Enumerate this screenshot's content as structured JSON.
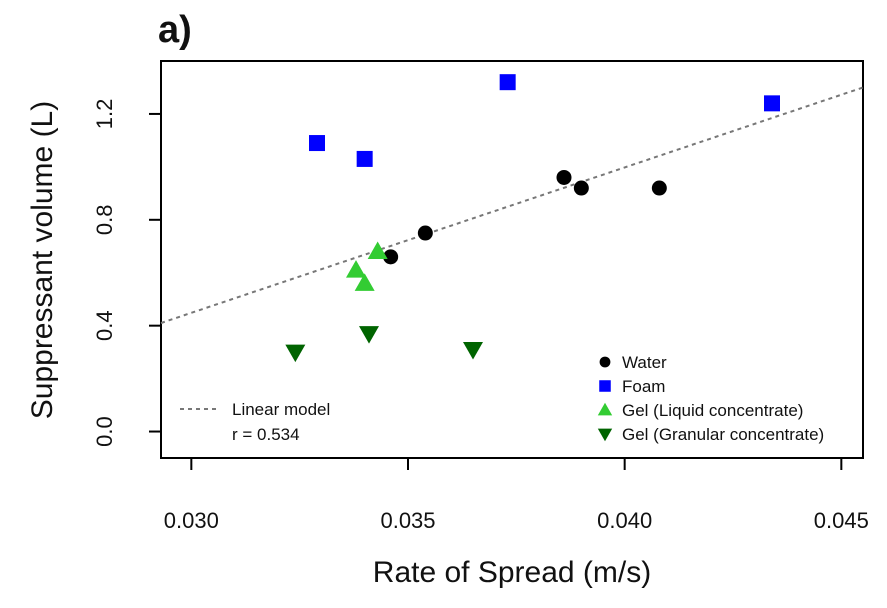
{
  "panel_label": "a)",
  "chart_data": {
    "type": "scatter",
    "xlabel": "Rate of Spread (m/s)",
    "ylabel": "Suppressant volume (L)",
    "xlim": [
      0.0293,
      0.0455
    ],
    "ylim": [
      -0.1,
      1.4
    ],
    "x_ticks": [
      "0.030",
      "0.035",
      "0.040",
      "0.045"
    ],
    "y_ticks": [
      "0.0",
      "0.4",
      "0.8",
      "1.2"
    ],
    "grid": false,
    "legend_placement": "bottom-right",
    "series": [
      {
        "name": "Water",
        "marker": "circle",
        "color": "#000000",
        "points": [
          [
            0.0346,
            0.66
          ],
          [
            0.0354,
            0.75
          ],
          [
            0.0386,
            0.96
          ],
          [
            0.039,
            0.92
          ],
          [
            0.0408,
            0.92
          ]
        ]
      },
      {
        "name": "Foam",
        "marker": "square",
        "color": "#0000ff",
        "points": [
          [
            0.0329,
            1.09
          ],
          [
            0.034,
            1.03
          ],
          [
            0.0373,
            1.32
          ],
          [
            0.0434,
            1.24
          ]
        ]
      },
      {
        "name": "Gel (Liquid concentrate)",
        "marker": "triangle-up",
        "color": "#33cc33",
        "points": [
          [
            0.0338,
            0.61
          ],
          [
            0.034,
            0.56
          ],
          [
            0.0343,
            0.68
          ]
        ]
      },
      {
        "name": "Gel (Granular concentrate)",
        "marker": "triangle-down",
        "color": "#006400",
        "points": [
          [
            0.0324,
            0.3
          ],
          [
            0.0341,
            0.37
          ],
          [
            0.0365,
            0.31
          ]
        ]
      }
    ],
    "linear_model": {
      "label": "Linear model",
      "r_text": "r = 0.534",
      "style": "dashed",
      "color": "#777777",
      "x": [
        0.0293,
        0.0455
      ],
      "y": [
        0.41,
        1.3
      ]
    }
  }
}
